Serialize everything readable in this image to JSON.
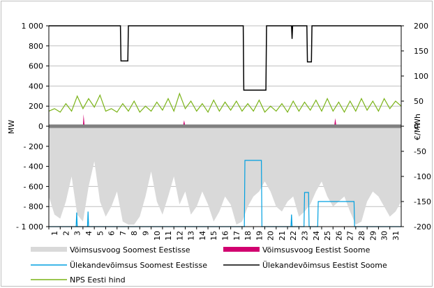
{
  "chart_data": {
    "type": "area",
    "xlabel": "",
    "ylabel_left": "MW",
    "ylabel_right": "€/MWh",
    "ylim_left": [
      -1000,
      1000
    ],
    "ylim_right": [
      -200,
      200
    ],
    "yticks_left": [
      "1 000",
      "800",
      "600",
      "400",
      "200",
      "0",
      "- 200",
      "- 400",
      "- 600",
      "- 800",
      "- 1 000"
    ],
    "yticks_right": [
      "200",
      "150",
      "100",
      "50",
      "0",
      "-50",
      "-100",
      "-150",
      "-200"
    ],
    "x_ticks": [
      "1",
      "2",
      "3",
      "4",
      "5",
      "6",
      "7",
      "8",
      "9",
      "10",
      "11",
      "12",
      "13",
      "14",
      "15",
      "16",
      "17",
      "18",
      "19",
      "20",
      "21",
      "22",
      "23",
      "24",
      "25",
      "26",
      "27",
      "28",
      "29",
      "30",
      "31"
    ],
    "x_range": [
      1,
      32
    ],
    "grid": "horizontal",
    "legend_position": "bottom",
    "series": [
      {
        "name": "Võimsusvoog Soomest Eestisse",
        "axis": "left",
        "style": "area",
        "color": "#d9d9d9",
        "points": [
          [
            1,
            -700
          ],
          [
            1.5,
            -880
          ],
          [
            2,
            -920
          ],
          [
            2.5,
            -750
          ],
          [
            3,
            -500
          ],
          [
            3.5,
            -880
          ],
          [
            4,
            -950
          ],
          [
            4.5,
            -600
          ],
          [
            5,
            -350
          ],
          [
            5.5,
            -750
          ],
          [
            6,
            -900
          ],
          [
            6.5,
            -800
          ],
          [
            7,
            -650
          ],
          [
            7.5,
            -950
          ],
          [
            8,
            -980
          ],
          [
            8.5,
            -980
          ],
          [
            9,
            -900
          ],
          [
            9.5,
            -700
          ],
          [
            10,
            -450
          ],
          [
            10.5,
            -750
          ],
          [
            11,
            -880
          ],
          [
            11.5,
            -700
          ],
          [
            12,
            -500
          ],
          [
            12.5,
            -780
          ],
          [
            13,
            -650
          ],
          [
            13.5,
            -880
          ],
          [
            14,
            -800
          ],
          [
            14.5,
            -650
          ],
          [
            15,
            -780
          ],
          [
            15.5,
            -950
          ],
          [
            16,
            -850
          ],
          [
            16.5,
            -700
          ],
          [
            17,
            -780
          ],
          [
            17.5,
            -980
          ],
          [
            18,
            -950
          ],
          [
            18.5,
            -800
          ],
          [
            19,
            -700
          ],
          [
            19.5,
            -650
          ],
          [
            20,
            -550
          ],
          [
            20.5,
            -650
          ],
          [
            21,
            -800
          ],
          [
            21.5,
            -850
          ],
          [
            22,
            -750
          ],
          [
            22.5,
            -700
          ],
          [
            23,
            -900
          ],
          [
            23.5,
            -850
          ],
          [
            24,
            -780
          ],
          [
            24.5,
            -650
          ],
          [
            25,
            -550
          ],
          [
            25.5,
            -700
          ],
          [
            26,
            -800
          ],
          [
            26.5,
            -750
          ],
          [
            27,
            -700
          ],
          [
            27.5,
            -850
          ],
          [
            28,
            -980
          ],
          [
            28.5,
            -950
          ],
          [
            29,
            -750
          ],
          [
            29.5,
            -650
          ],
          [
            30,
            -700
          ],
          [
            30.5,
            -800
          ],
          [
            31,
            -900
          ],
          [
            31.5,
            -850
          ],
          [
            32,
            -750
          ]
        ]
      },
      {
        "name": "Võimsusvoog Eestist Soome",
        "axis": "left",
        "style": "area",
        "color": "#d1006f",
        "points": [
          [
            4,
            0
          ],
          [
            4.05,
            120
          ],
          [
            4.15,
            0
          ],
          [
            12.8,
            0
          ],
          [
            12.9,
            60
          ],
          [
            13,
            0
          ],
          [
            26.1,
            0
          ],
          [
            26.2,
            80
          ],
          [
            26.3,
            0
          ]
        ]
      },
      {
        "name": "Ülekandevõimsus Soomest Eestisse",
        "axis": "left",
        "style": "line",
        "color": "#00a0e0",
        "points": [
          [
            1,
            -1000
          ],
          [
            3.4,
            -1000
          ],
          [
            3.45,
            -860
          ],
          [
            3.5,
            -1000
          ],
          [
            4.4,
            -1000
          ],
          [
            4.45,
            -850
          ],
          [
            4.5,
            -1000
          ],
          [
            18.2,
            -1000
          ],
          [
            18.25,
            -340
          ],
          [
            19.7,
            -340
          ],
          [
            19.75,
            -1000
          ],
          [
            22.3,
            -1000
          ],
          [
            22.35,
            -880
          ],
          [
            22.4,
            -1000
          ],
          [
            23.45,
            -1000
          ],
          [
            23.5,
            -660
          ],
          [
            23.85,
            -660
          ],
          [
            23.9,
            -1000
          ],
          [
            24.65,
            -1000
          ],
          [
            24.7,
            -750
          ],
          [
            27.85,
            -750
          ],
          [
            27.9,
            -1000
          ],
          [
            32,
            -1000
          ]
        ]
      },
      {
        "name": "Ülekandevõimsus Eestist Soome",
        "axis": "left",
        "style": "line",
        "color": "#000000",
        "points": [
          [
            1,
            1000
          ],
          [
            7.3,
            1000
          ],
          [
            7.35,
            650
          ],
          [
            7.95,
            650
          ],
          [
            8,
            1000
          ],
          [
            18.1,
            1000
          ],
          [
            18.15,
            360
          ],
          [
            20.1,
            360
          ],
          [
            20.15,
            1000
          ],
          [
            22.35,
            1000
          ],
          [
            22.4,
            870
          ],
          [
            22.45,
            1000
          ],
          [
            23.7,
            1000
          ],
          [
            23.75,
            640
          ],
          [
            24.1,
            640
          ],
          [
            24.15,
            1000
          ],
          [
            32,
            1000
          ]
        ]
      },
      {
        "name": "NPS Eesti hind",
        "axis": "right",
        "style": "line",
        "color": "#7ab317",
        "points": [
          [
            1,
            30
          ],
          [
            1.5,
            35
          ],
          [
            2,
            28
          ],
          [
            2.5,
            45
          ],
          [
            3,
            30
          ],
          [
            3.5,
            60
          ],
          [
            4,
            35
          ],
          [
            4.5,
            55
          ],
          [
            5,
            38
          ],
          [
            5.5,
            62
          ],
          [
            6,
            30
          ],
          [
            6.5,
            35
          ],
          [
            7,
            28
          ],
          [
            7.5,
            45
          ],
          [
            8,
            30
          ],
          [
            8.5,
            50
          ],
          [
            9,
            28
          ],
          [
            9.5,
            40
          ],
          [
            10,
            30
          ],
          [
            10.5,
            48
          ],
          [
            11,
            32
          ],
          [
            11.5,
            55
          ],
          [
            12,
            30
          ],
          [
            12.5,
            65
          ],
          [
            13,
            35
          ],
          [
            13.5,
            50
          ],
          [
            14,
            30
          ],
          [
            14.5,
            45
          ],
          [
            15,
            28
          ],
          [
            15.5,
            52
          ],
          [
            16,
            30
          ],
          [
            16.5,
            48
          ],
          [
            17,
            32
          ],
          [
            17.5,
            50
          ],
          [
            18,
            30
          ],
          [
            18.5,
            45
          ],
          [
            19,
            30
          ],
          [
            19.5,
            52
          ],
          [
            20,
            28
          ],
          [
            20.5,
            40
          ],
          [
            21,
            30
          ],
          [
            21.5,
            45
          ],
          [
            22,
            28
          ],
          [
            22.5,
            50
          ],
          [
            23,
            30
          ],
          [
            23.5,
            48
          ],
          [
            24,
            32
          ],
          [
            24.5,
            52
          ],
          [
            25,
            30
          ],
          [
            25.5,
            55
          ],
          [
            26,
            30
          ],
          [
            26.5,
            48
          ],
          [
            27,
            28
          ],
          [
            27.5,
            50
          ],
          [
            28,
            30
          ],
          [
            28.5,
            55
          ],
          [
            29,
            32
          ],
          [
            29.5,
            50
          ],
          [
            30,
            30
          ],
          [
            30.5,
            55
          ],
          [
            31,
            35
          ],
          [
            31.5,
            50
          ],
          [
            32,
            40
          ]
        ]
      }
    ]
  }
}
